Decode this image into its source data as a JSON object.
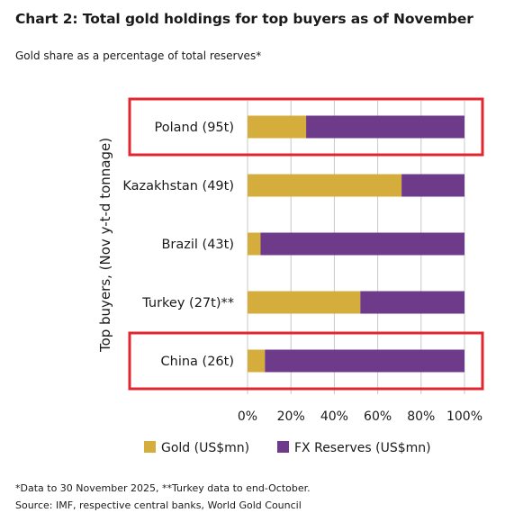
{
  "chart_data": {
    "type": "bar",
    "orientation": "horizontal",
    "stacked": true,
    "title": "Chart 2: Total gold holdings for top buyers as of November",
    "subtitle": "Gold share as a percentage of total reserves*",
    "ylabel": "Top buyers, (Nov y-t-d tonnage)",
    "xlabel": "",
    "xlim": [
      0,
      100
    ],
    "x_ticks": [
      "0%",
      "20%",
      "40%",
      "60%",
      "80%",
      "100%"
    ],
    "grid": true,
    "legend_position": "bottom",
    "categories": [
      "Poland (95t)",
      "Kazakhstan (49t)",
      "Brazil (43t)",
      "Turkey (27t)**",
      "China (26t)"
    ],
    "series": [
      {
        "name": "Gold (US$mn)",
        "color": "#d4ad3c",
        "values": [
          27,
          71,
          6,
          52,
          8
        ]
      },
      {
        "name": "FX Reserves (US$mn)",
        "color": "#6e3a8a",
        "values": [
          73,
          29,
          94,
          48,
          92
        ]
      }
    ],
    "highlighted": [
      "Poland (95t)",
      "China (26t)"
    ],
    "highlight_color": "#e0262f"
  },
  "footnotes": {
    "note": "*Data to 30 November 2025, **Turkey data to end-October.",
    "source": "Source: IMF, respective central banks, World Gold Council"
  }
}
